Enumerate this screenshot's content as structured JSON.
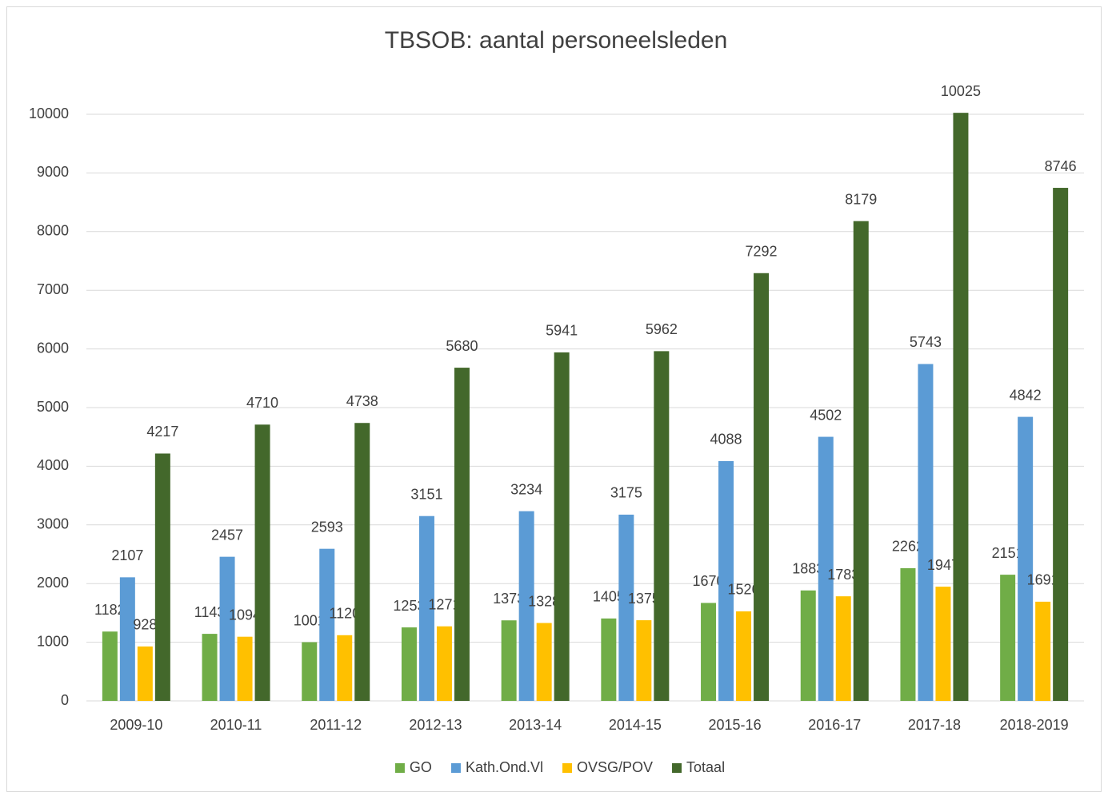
{
  "chart_data": {
    "type": "bar",
    "title": "TBSOB: aantal personeelsleden",
    "categories": [
      "2009-10",
      "2010-11",
      "2011-12",
      "2012-13",
      "2013-14",
      "2014-15",
      "2015-16",
      "2016-17",
      "2017-18",
      "2018-2019"
    ],
    "series": [
      {
        "name": "GO",
        "color": "#70ad47",
        "values": [
          1182,
          1143,
          1001,
          1253,
          1373,
          1405,
          1670,
          1883,
          2262,
          2151
        ]
      },
      {
        "name": "Kath.Ond.Vl",
        "color": "#5b9bd5",
        "values": [
          2107,
          2457,
          2593,
          3151,
          3234,
          3175,
          4088,
          4502,
          5743,
          4842
        ]
      },
      {
        "name": "OVSG/POV",
        "color": "#ffc000",
        "values": [
          928,
          1094,
          1120,
          1271,
          1328,
          1375,
          1526,
          1783,
          1947,
          1691
        ]
      },
      {
        "name": "Totaal",
        "color": "#43682b",
        "values": [
          4217,
          4710,
          4738,
          5680,
          5941,
          5962,
          7292,
          8179,
          10025,
          8746
        ]
      }
    ],
    "ylim": [
      0,
      10000
    ],
    "yticks": [
      0,
      1000,
      2000,
      3000,
      4000,
      5000,
      6000,
      7000,
      8000,
      9000,
      10000
    ],
    "grid": true,
    "legend": "bottom"
  }
}
